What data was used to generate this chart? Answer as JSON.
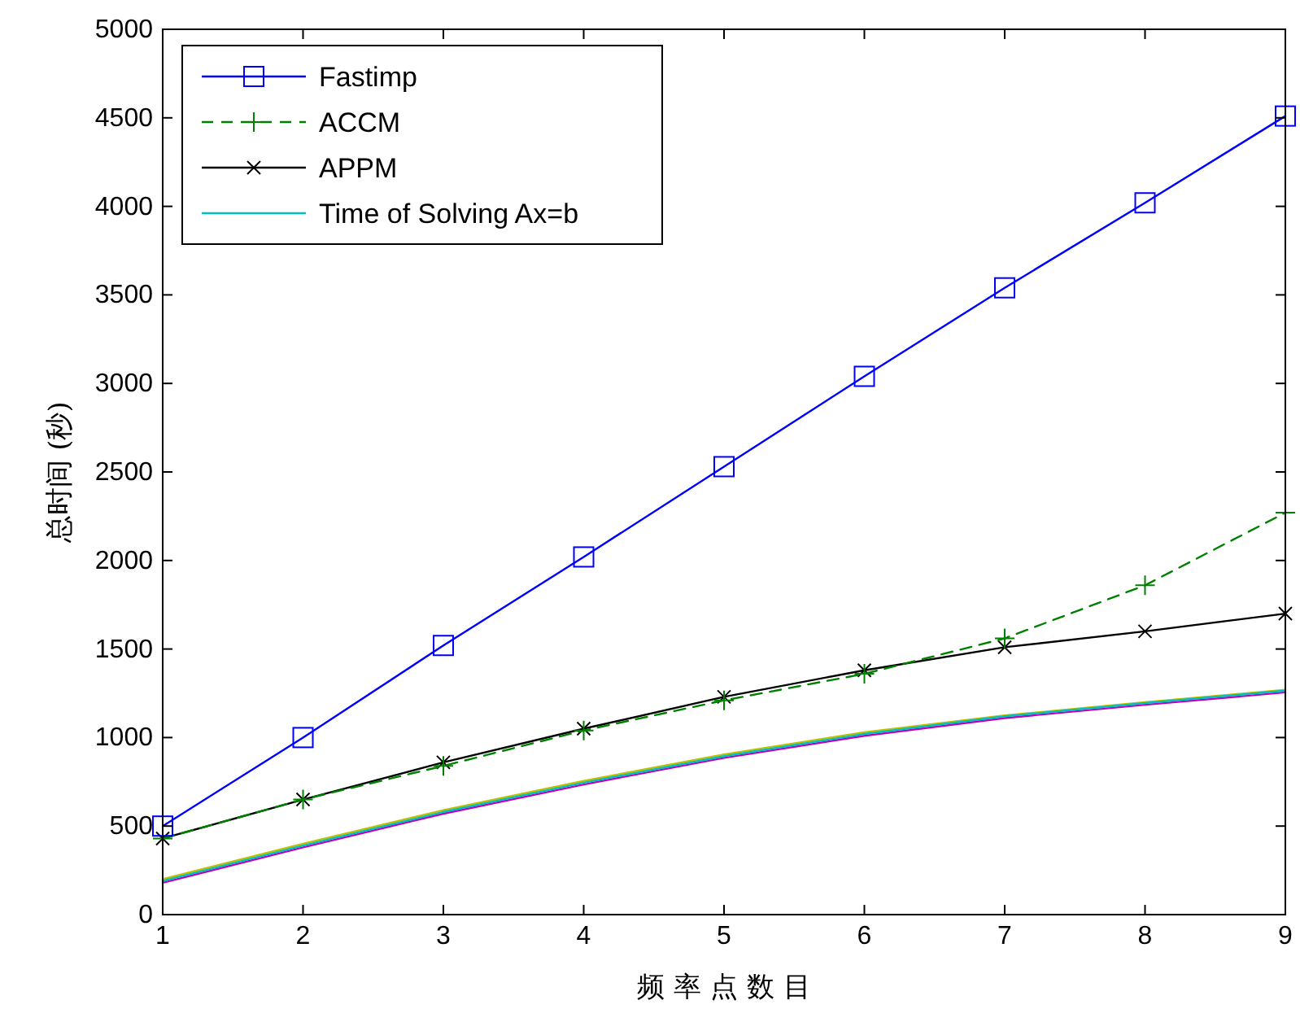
{
  "chart_data": {
    "type": "line",
    "xlabel": "频 率 点 数 目",
    "ylabel": "总时间 (秒)",
    "x": [
      1,
      2,
      3,
      4,
      5,
      6,
      7,
      8,
      9
    ],
    "xlim": [
      1,
      9
    ],
    "xticks": [
      1,
      2,
      3,
      4,
      5,
      6,
      7,
      8,
      9
    ],
    "ylim": [
      0,
      5000
    ],
    "yticks": [
      0,
      500,
      1000,
      1500,
      2000,
      2500,
      3000,
      3500,
      4000,
      4500,
      5000
    ],
    "grid": false,
    "legend": "top left",
    "series": [
      {
        "name": "Fastimp",
        "color": "#0000ff",
        "marker": "square",
        "line_style": "solid",
        "values": [
          500,
          1000,
          1520,
          2020,
          2530,
          3040,
          3540,
          4020,
          4510
        ]
      },
      {
        "name": "ACCM",
        "color": "#008000",
        "marker": "plus",
        "line_style": "dashed",
        "values": [
          430,
          650,
          840,
          1040,
          1210,
          1360,
          1560,
          1860,
          2270
        ]
      },
      {
        "name": "APPM",
        "color": "#000000",
        "marker": "cross",
        "line_style": "solid",
        "values": [
          430,
          650,
          860,
          1050,
          1230,
          1380,
          1510,
          1600,
          1700
        ]
      },
      {
        "name": "Time of Solving Ax=b",
        "color": "#00bfbf",
        "marker": "none",
        "line_style": "solid",
        "values": [
          190,
          390,
          580,
          745,
          895,
          1020,
          1120,
          1195,
          1265
        ]
      },
      {
        "color": "#bfbf00",
        "marker": "none",
        "line_style": "solid",
        "values": [
          200,
          400,
          590,
          755,
          905,
          1030,
          1125,
          1200,
          1270
        ]
      },
      {
        "color": "#bf00bf",
        "marker": "none",
        "line_style": "solid",
        "values": [
          180,
          380,
          570,
          735,
          885,
          1010,
          1110,
          1185,
          1255
        ]
      }
    ]
  }
}
